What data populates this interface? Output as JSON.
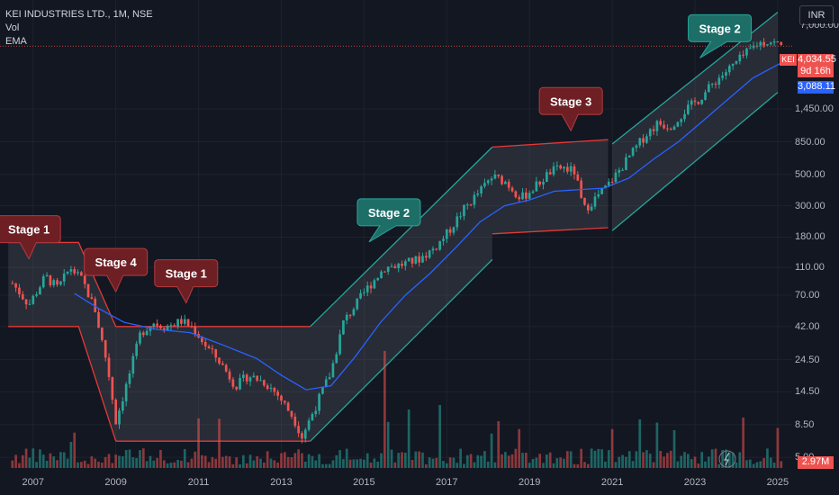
{
  "header": {
    "symbol_line": "KEI INDUSTRIES LTD., 1M, NSE",
    "indicator_vol": "Vol",
    "indicator_ema": "EMA",
    "currency_button": "INR"
  },
  "price_axis": {
    "last_price": "4,034.55",
    "countdown": "9d 16h",
    "ema_value": "3,088.11",
    "symbol_badge": "KEI",
    "volume_value": "2.97M",
    "top_partial_label": "7,000.00"
  },
  "colors": {
    "background": "#131722",
    "up": "#26a69a",
    "down": "#ef5350",
    "ema": "#2962ff",
    "channel_teal": "#26a69a",
    "channel_red": "#e53935",
    "callout_red": "#6d1f24",
    "callout_teal": "#1e6e68"
  },
  "chart_data": {
    "type": "candlestick",
    "title": "KEI INDUSTRIES LTD., 1M, NSE",
    "y_scale": "log",
    "y_ticks": [
      5.0,
      8.5,
      14.5,
      24.5,
      42.0,
      70.0,
      110.0,
      180.0,
      300.0,
      500.0,
      850.0,
      1450.0
    ],
    "y_tick_labels": [
      "5.00",
      "8.50",
      "14.50",
      "24.50",
      "42.00",
      "70.00",
      "110.00",
      "180.00",
      "300.00",
      "500.00",
      "850.00",
      "1,450.00"
    ],
    "ylim": [
      4.2,
      7600
    ],
    "x_tick_labels": [
      "2007",
      "2009",
      "2011",
      "2013",
      "2015",
      "2017",
      "2019",
      "2021",
      "2023",
      "2025"
    ],
    "xlim": [
      2006.2,
      2025.35
    ],
    "price_path": [
      [
        2006.5,
        85
      ],
      [
        2006.9,
        60
      ],
      [
        2007.3,
        95
      ],
      [
        2007.6,
        78
      ],
      [
        2007.9,
        110
      ],
      [
        2008.2,
        88
      ],
      [
        2008.5,
        55
      ],
      [
        2008.8,
        22
      ],
      [
        2009.0,
        9
      ],
      [
        2009.3,
        18
      ],
      [
        2009.6,
        38
      ],
      [
        2009.9,
        45
      ],
      [
        2010.2,
        42
      ],
      [
        2010.6,
        46
      ],
      [
        2010.9,
        40
      ],
      [
        2011.2,
        30
      ],
      [
        2011.5,
        24
      ],
      [
        2011.9,
        16
      ],
      [
        2012.2,
        19
      ],
      [
        2012.6,
        17
      ],
      [
        2012.9,
        14
      ],
      [
        2013.3,
        9.5
      ],
      [
        2013.5,
        7
      ],
      [
        2013.8,
        11
      ],
      [
        2014.2,
        20
      ],
      [
        2014.5,
        45
      ],
      [
        2014.8,
        60
      ],
      [
        2015.1,
        80
      ],
      [
        2015.5,
        110
      ],
      [
        2015.9,
        115
      ],
      [
        2016.3,
        125
      ],
      [
        2016.7,
        150
      ],
      [
        2017.0,
        190
      ],
      [
        2017.4,
        280
      ],
      [
        2017.8,
        380
      ],
      [
        2018.1,
        480
      ],
      [
        2018.4,
        450
      ],
      [
        2018.8,
        340
      ],
      [
        2019.1,
        400
      ],
      [
        2019.5,
        520
      ],
      [
        2019.8,
        560
      ],
      [
        2020.1,
        520
      ],
      [
        2020.3,
        280
      ],
      [
        2020.6,
        340
      ],
      [
        2020.9,
        420
      ],
      [
        2021.2,
        550
      ],
      [
        2021.5,
        720
      ],
      [
        2021.8,
        950
      ],
      [
        2022.1,
        1150
      ],
      [
        2022.4,
        1100
      ],
      [
        2022.8,
        1450
      ],
      [
        2023.1,
        1700
      ],
      [
        2023.5,
        2300
      ],
      [
        2023.9,
        2900
      ],
      [
        2024.2,
        3500
      ],
      [
        2024.5,
        4200
      ],
      [
        2024.8,
        4400
      ],
      [
        2025.1,
        4034.55
      ]
    ],
    "ema_path": [
      [
        2008.0,
        72
      ],
      [
        2008.6,
        56
      ],
      [
        2009.2,
        45
      ],
      [
        2010.0,
        40
      ],
      [
        2010.8,
        38
      ],
      [
        2011.6,
        31
      ],
      [
        2012.4,
        25
      ],
      [
        2013.0,
        19
      ],
      [
        2013.6,
        15
      ],
      [
        2014.2,
        16
      ],
      [
        2014.8,
        26
      ],
      [
        2015.4,
        45
      ],
      [
        2016.0,
        70
      ],
      [
        2016.6,
        100
      ],
      [
        2017.2,
        150
      ],
      [
        2017.8,
        230
      ],
      [
        2018.4,
        300
      ],
      [
        2019.0,
        330
      ],
      [
        2019.6,
        380
      ],
      [
        2020.2,
        390
      ],
      [
        2020.8,
        400
      ],
      [
        2021.4,
        470
      ],
      [
        2022.0,
        640
      ],
      [
        2022.6,
        850
      ],
      [
        2023.2,
        1200
      ],
      [
        2023.8,
        1700
      ],
      [
        2024.4,
        2400
      ],
      [
        2025.1,
        3088.11
      ]
    ],
    "channels": [
      {
        "color": "red",
        "points": [
          [
            2006.4,
            165
          ],
          [
            2008.1,
            165
          ],
          [
            2009.0,
            6.5
          ],
          [
            2013.7,
            6.5
          ],
          [
            2013.7,
            6.5
          ],
          [
            2009.0,
            6.5
          ],
          [
            2008.1,
            42
          ],
          [
            2006.4,
            42
          ]
        ],
        "shape": "stage1_stage4",
        "upper": [
          [
            2006.4,
            165
          ],
          [
            2008.1,
            165
          ],
          [
            2009.0,
            42
          ]
        ],
        "lower": [
          [
            2006.4,
            42
          ],
          [
            2008.1,
            42
          ],
          [
            2009.0,
            6.5
          ]
        ]
      },
      {
        "color": "red",
        "upper": [
          [
            2009.0,
            42
          ],
          [
            2013.7,
            42
          ]
        ],
        "lower": [
          [
            2009.0,
            6.5
          ],
          [
            2013.7,
            6.5
          ]
        ]
      },
      {
        "color": "teal",
        "upper": [
          [
            2013.7,
            42
          ],
          [
            2018.1,
            780
          ]
        ],
        "lower": [
          [
            2013.7,
            6.5
          ],
          [
            2018.1,
            125
          ]
        ]
      },
      {
        "color": "red",
        "upper": [
          [
            2018.1,
            780
          ],
          [
            2020.9,
            880
          ]
        ],
        "lower": [
          [
            2018.1,
            190
          ],
          [
            2020.9,
            210
          ]
        ]
      },
      {
        "color": "teal",
        "upper": [
          [
            2021.0,
            820
          ],
          [
            2025.0,
            7000
          ]
        ],
        "lower": [
          [
            2021.0,
            200
          ],
          [
            2025.0,
            1900
          ]
        ]
      }
    ],
    "annotations": [
      {
        "text": "Stage 1",
        "x": 2006.9,
        "y": 205,
        "style": "red"
      },
      {
        "text": "Stage 4",
        "x": 2009.0,
        "y": 120,
        "style": "red"
      },
      {
        "text": "Stage 1",
        "x": 2010.7,
        "y": 100,
        "style": "red"
      },
      {
        "text": "Stage 2",
        "x": 2015.6,
        "y": 270,
        "style": "teal"
      },
      {
        "text": "Stage 3",
        "x": 2020.0,
        "y": 1650,
        "style": "red"
      },
      {
        "text": "Stage 2",
        "x": 2023.6,
        "y": 5400,
        "style": "teal"
      }
    ],
    "grid": true,
    "volume": true
  }
}
